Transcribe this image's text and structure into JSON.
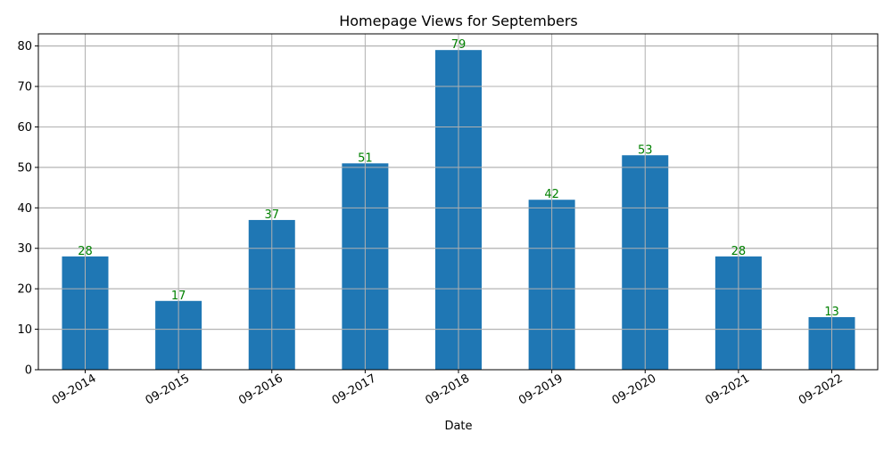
{
  "chart_data": {
    "type": "bar",
    "title": "Homepage Views for Septembers",
    "xlabel": "Date",
    "ylabel": "",
    "categories": [
      "09-2014",
      "09-2015",
      "09-2016",
      "09-2017",
      "09-2018",
      "09-2019",
      "09-2020",
      "09-2021",
      "09-2022"
    ],
    "values": [
      28,
      17,
      37,
      51,
      79,
      42,
      53,
      28,
      13
    ],
    "ylim": [
      0,
      83
    ],
    "yticks": [
      0,
      10,
      20,
      30,
      40,
      50,
      60,
      70,
      80
    ],
    "grid": true,
    "legend": "none",
    "colors": {
      "bar": "#1f77b4",
      "data_label": "#008000",
      "grid": "#b0b0b0",
      "axis": "#000000"
    }
  }
}
